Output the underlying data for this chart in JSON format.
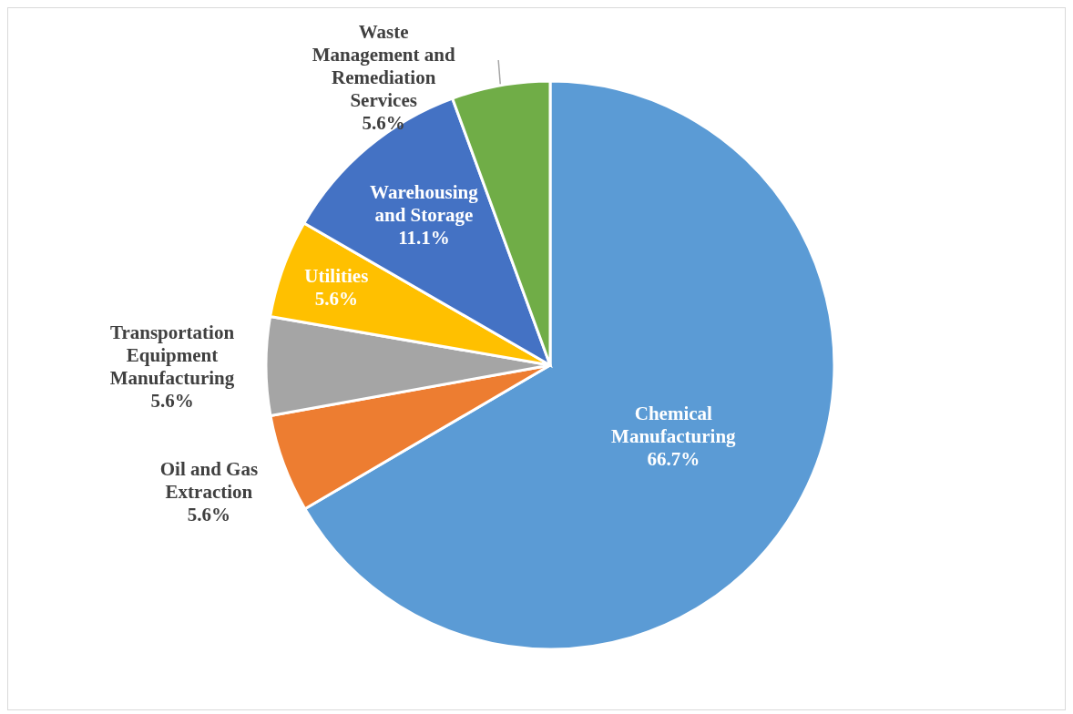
{
  "chart_data": {
    "type": "pie",
    "categories": [
      "Chemical Manufacturing",
      "Oil and Gas Extraction",
      "Transportation Equipment Manufacturing",
      "Utilities",
      "Warehousing and Storage",
      "Waste Management and Remediation Services"
    ],
    "values": [
      66.7,
      5.6,
      5.6,
      5.6,
      11.1,
      5.6
    ],
    "value_labels": [
      "66.7%",
      "5.6%",
      "5.6%",
      "5.6%",
      "11.1%",
      "5.6%"
    ],
    "colors": [
      "#5b9bd5",
      "#ed7d31",
      "#a5a5a5",
      "#ffc000",
      "#4472c4",
      "#70ad47"
    ],
    "legend": false
  }
}
